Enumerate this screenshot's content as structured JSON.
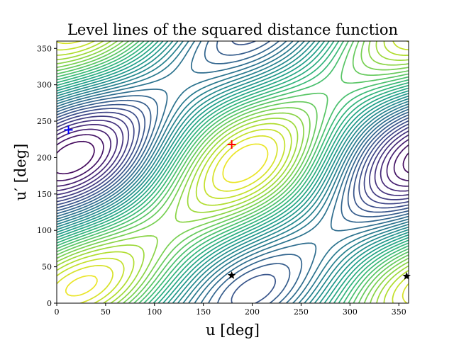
{
  "chart_data": {
    "type": "contour",
    "title": "Level lines of the squared distance function",
    "xlabel": "u [deg]",
    "ylabel": "u′ [deg]",
    "xlim": [
      0,
      360
    ],
    "ylim": [
      0,
      360
    ],
    "xticks": [
      0,
      50,
      100,
      150,
      200,
      250,
      300,
      350
    ],
    "yticks": [
      0,
      50,
      100,
      150,
      200,
      250,
      300,
      350
    ],
    "colormap": "viridis",
    "grid": false,
    "markers": [
      {
        "marker": "plus",
        "color": "#0000ff",
        "x": 12,
        "y": 238
      },
      {
        "marker": "plus",
        "color": "#ff0000",
        "x": 179,
        "y": 218
      },
      {
        "marker": "star",
        "color": "#000000",
        "x": 179,
        "y": 38
      },
      {
        "marker": "star",
        "color": "#000000",
        "x": 358,
        "y": 37
      }
    ]
  }
}
